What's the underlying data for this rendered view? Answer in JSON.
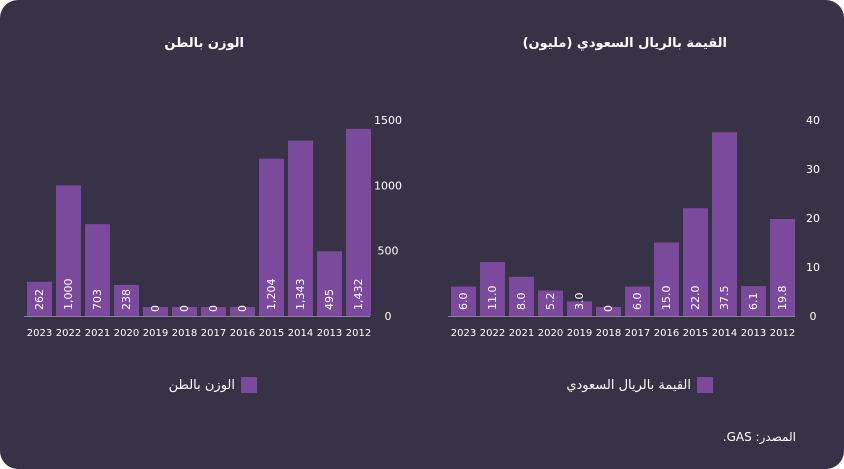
{
  "colors": {
    "background": "#383247",
    "bar": "#7c4a9c",
    "axis": "#8a8496",
    "text": "#ffffff"
  },
  "source": "المصدر: GAS.",
  "chart_data": [
    {
      "type": "bar",
      "title": "الوزن بالطن",
      "legend": "الوزن بالطن",
      "legend_position": "bottom",
      "categories": [
        "2023",
        "2022",
        "2021",
        "2020",
        "2019",
        "2018",
        "2017",
        "2016",
        "2015",
        "2014",
        "2013",
        "2012"
      ],
      "values": [
        262,
        1000,
        703,
        238,
        0,
        0,
        0,
        0,
        1204,
        1343,
        495,
        1432
      ],
      "data_labels": [
        "262",
        "1,000",
        "703",
        "238",
        "0",
        "0",
        "0",
        "0",
        "1,204",
        "1,343",
        "495",
        "1,432"
      ],
      "ylim": [
        0,
        1500
      ],
      "yticks": [
        0,
        500,
        1000,
        1500
      ],
      "ytick_labels": [
        "0",
        "500",
        "1000",
        "1500"
      ],
      "grid": false
    },
    {
      "type": "bar",
      "title": "القيمة بالريال السعودي (مليون)",
      "legend": "القيمة بالريال السعودي",
      "legend_position": "bottom",
      "categories": [
        "2023",
        "2022",
        "2021",
        "2020",
        "2019",
        "2018",
        "2017",
        "2016",
        "2015",
        "2014",
        "2013",
        "2012"
      ],
      "values": [
        6.0,
        11.0,
        8.0,
        5.2,
        3.0,
        0,
        6.0,
        15.0,
        22.0,
        37.5,
        6.1,
        19.8
      ],
      "data_labels": [
        "6.0",
        "11.0",
        "8.0",
        "5.2",
        "3.0",
        "0",
        "6.0",
        "15.0",
        "22.0",
        "37.5",
        "6.1",
        "19.8"
      ],
      "ylim": [
        0,
        40
      ],
      "yticks": [
        0,
        10,
        20,
        30,
        40
      ],
      "ytick_labels": [
        "0",
        "10",
        "20",
        "30",
        "40"
      ],
      "grid": false
    }
  ]
}
